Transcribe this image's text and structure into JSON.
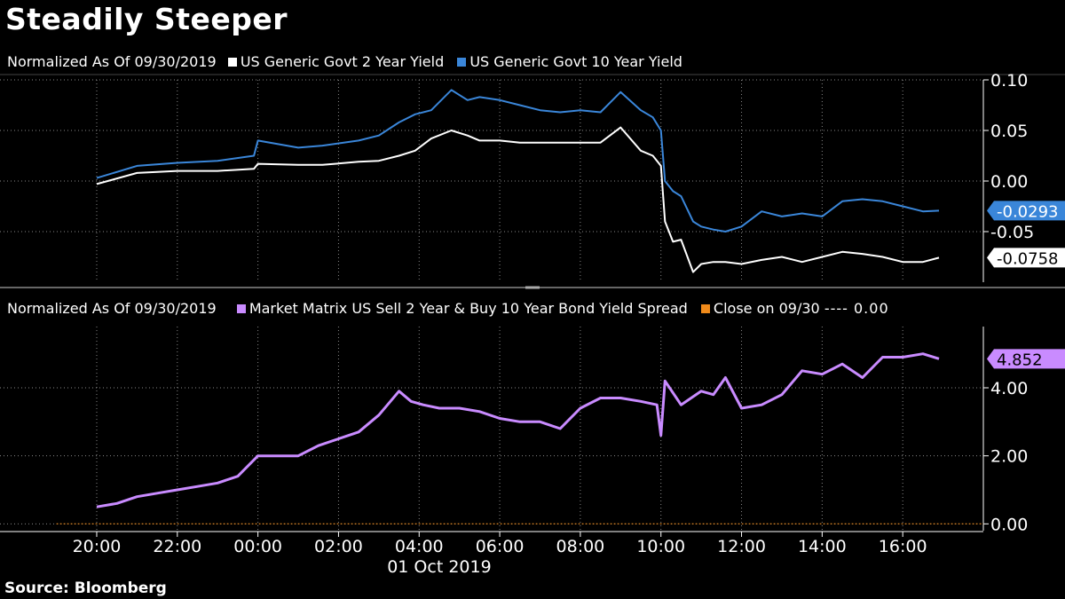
{
  "title": "Steadily Steeper",
  "source": "Source:  Bloomberg",
  "colors": {
    "white_series": "#ffffff",
    "blue_series": "#3a86d9",
    "spread": "#c98bff",
    "close": "#f08a1a"
  },
  "chart_data": [
    {
      "type": "line",
      "legend_prefix": "Normalized As Of 09/30/2019",
      "series": [
        {
          "name": "US Generic Govt 2 Year Yield",
          "color": "#ffffff",
          "last_label": "-0.0758",
          "x": [
            20.0,
            21.0,
            22.0,
            23.0,
            23.9,
            24.0,
            25.0,
            25.6,
            26.5,
            27.0,
            27.5,
            27.9,
            28.3,
            28.8,
            29.2,
            29.5,
            30.0,
            30.5,
            31.0,
            31.5,
            32.0,
            32.5,
            33.0,
            33.5,
            33.8,
            34.0,
            34.1,
            34.3,
            34.5,
            34.8,
            35.0,
            35.3,
            35.6,
            36.0,
            36.5,
            37.0,
            37.5,
            38.0,
            38.5,
            39.0,
            39.5,
            40.0,
            40.5,
            40.9
          ],
          "values": [
            -0.003,
            0.008,
            0.01,
            0.01,
            0.012,
            0.017,
            0.016,
            0.016,
            0.019,
            0.02,
            0.025,
            0.03,
            0.042,
            0.05,
            0.045,
            0.04,
            0.04,
            0.038,
            0.038,
            0.038,
            0.038,
            0.038,
            0.053,
            0.03,
            0.025,
            0.015,
            -0.04,
            -0.06,
            -0.058,
            -0.09,
            -0.082,
            -0.08,
            -0.08,
            -0.082,
            -0.078,
            -0.075,
            -0.08,
            -0.075,
            -0.07,
            -0.072,
            -0.075,
            -0.08,
            -0.08,
            -0.0758
          ]
        },
        {
          "name": "US Generic Govt 10 Year Yield",
          "color": "#3a86d9",
          "last_label": "-0.0293",
          "x": [
            20.0,
            21.0,
            22.0,
            23.0,
            23.9,
            24.0,
            25.0,
            25.6,
            26.5,
            27.0,
            27.5,
            27.9,
            28.3,
            28.8,
            29.2,
            29.5,
            30.0,
            30.5,
            31.0,
            31.5,
            32.0,
            32.5,
            33.0,
            33.5,
            33.8,
            34.0,
            34.1,
            34.3,
            34.5,
            34.8,
            35.0,
            35.3,
            35.6,
            36.0,
            36.5,
            37.0,
            37.5,
            38.0,
            38.5,
            39.0,
            39.5,
            40.0,
            40.5,
            40.9
          ],
          "values": [
            0.003,
            0.015,
            0.018,
            0.02,
            0.025,
            0.04,
            0.033,
            0.035,
            0.04,
            0.045,
            0.058,
            0.066,
            0.07,
            0.09,
            0.08,
            0.083,
            0.08,
            0.075,
            0.07,
            0.068,
            0.07,
            0.068,
            0.088,
            0.07,
            0.063,
            0.05,
            0.0,
            -0.01,
            -0.015,
            -0.04,
            -0.045,
            -0.048,
            -0.05,
            -0.045,
            -0.03,
            -0.035,
            -0.032,
            -0.035,
            -0.02,
            -0.018,
            -0.02,
            -0.025,
            -0.03,
            -0.0293
          ]
        }
      ],
      "y_ticks": [
        "0.10",
        "0.05",
        "0.00",
        "-0.05"
      ],
      "y_tick_values": [
        0.1,
        0.05,
        0.0,
        -0.05
      ],
      "ylim": [
        -0.1,
        0.1
      ]
    },
    {
      "type": "line",
      "legend_prefix": "Normalized As Of 09/30/2019",
      "series": [
        {
          "name": "Market Matrix US Sell 2 Year & Buy 10 Year Bond Yield Spread",
          "color": "#c98bff",
          "last_label": "4.852",
          "x": [
            20.0,
            20.5,
            21.0,
            21.5,
            22.0,
            22.5,
            23.0,
            23.5,
            24.0,
            24.5,
            25.0,
            25.5,
            26.0,
            26.5,
            27.0,
            27.5,
            27.8,
            28.1,
            28.5,
            29.0,
            29.5,
            30.0,
            30.5,
            31.0,
            31.5,
            32.0,
            32.5,
            33.0,
            33.5,
            33.9,
            34.0,
            34.1,
            34.5,
            35.0,
            35.3,
            35.6,
            36.0,
            36.5,
            37.0,
            37.5,
            38.0,
            38.5,
            39.0,
            39.5,
            40.0,
            40.5,
            40.9
          ],
          "values": [
            0.5,
            0.6,
            0.8,
            0.9,
            1.0,
            1.1,
            1.2,
            1.4,
            2.0,
            2.0,
            2.0,
            2.3,
            2.5,
            2.7,
            3.2,
            3.9,
            3.6,
            3.5,
            3.4,
            3.4,
            3.3,
            3.1,
            3.0,
            3.0,
            2.8,
            3.4,
            3.7,
            3.7,
            3.6,
            3.5,
            2.6,
            4.2,
            3.5,
            3.9,
            3.8,
            4.3,
            3.4,
            3.5,
            3.8,
            4.5,
            4.4,
            4.7,
            4.3,
            4.9,
            4.9,
            5.0,
            4.852
          ]
        },
        {
          "name": "Close on 09/30",
          "color": "#f08a1a",
          "label_suffix": "---- 0.00",
          "x": [
            19.0,
            42.0
          ],
          "values": [
            0.0,
            0.0
          ]
        }
      ],
      "y_ticks": [
        "4.00",
        "2.00",
        "0.00"
      ],
      "y_tick_values": [
        4.0,
        2.0,
        0.0
      ],
      "ylim": [
        -0.2,
        5.8
      ]
    }
  ],
  "x_axis": {
    "ticks": [
      "20:00",
      "22:00",
      "00:00",
      "02:00",
      "04:00",
      "06:00",
      "08:00",
      "10:00",
      "12:00",
      "14:00",
      "16:00"
    ],
    "tick_values": [
      20,
      22,
      24,
      26,
      28,
      30,
      32,
      34,
      36,
      38,
      40
    ],
    "date_label": "01 Oct 2019",
    "xlim": [
      17.6,
      42.0
    ]
  }
}
